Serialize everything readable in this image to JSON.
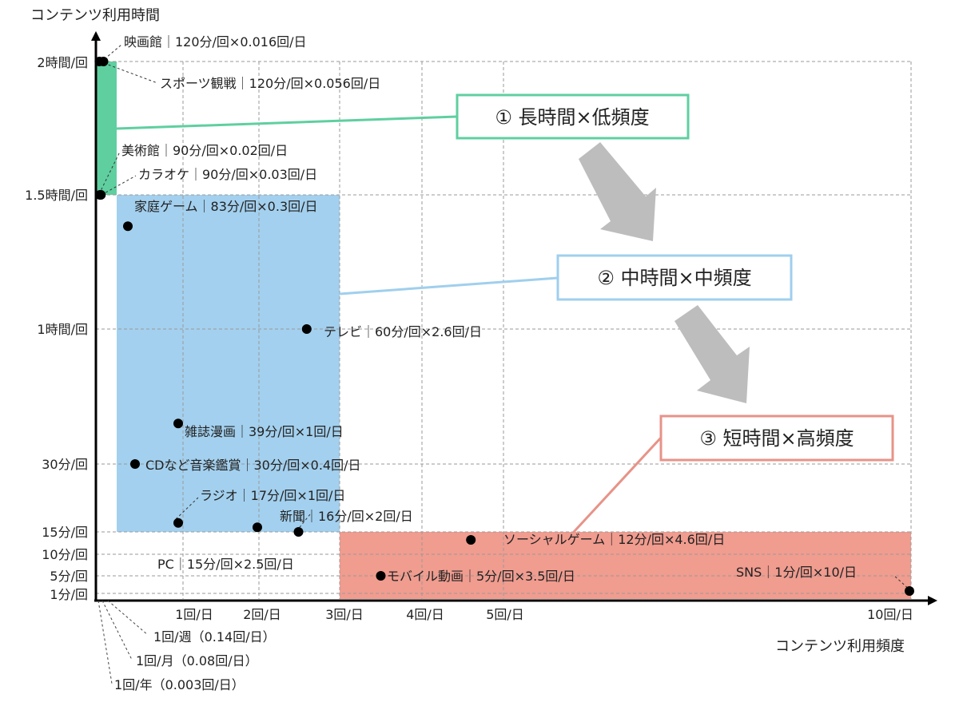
{
  "chart_data": {
    "type": "scatter",
    "ylabel": "コンテンツ利用時間",
    "xlabel": "コンテンツ利用頻度",
    "y_ticks": [
      {
        "label": "2時間/回",
        "value": 120
      },
      {
        "label": "1.5時間/回",
        "value": 90
      },
      {
        "label": "1時間/回",
        "value": 60
      },
      {
        "label": "30分/回",
        "value": 30
      },
      {
        "label": "15分/回",
        "value": 15
      },
      {
        "label": "10分/回",
        "value": 10
      },
      {
        "label": "5分/回",
        "value": 5
      },
      {
        "label": "1分/回",
        "value": 1
      }
    ],
    "x_ticks": [
      {
        "label": "1回/日",
        "value": 1
      },
      {
        "label": "2回/日",
        "value": 2
      },
      {
        "label": "3回/日",
        "value": 3
      },
      {
        "label": "4回/日",
        "value": 4
      },
      {
        "label": "5回/日",
        "value": 5
      },
      {
        "label": "10回/日",
        "value": 10
      }
    ],
    "x_small_ticks": [
      {
        "label": "1回/週（0.14回/日）",
        "value": 0.14
      },
      {
        "label": "1回/月（0.08回/日）",
        "value": 0.08
      },
      {
        "label": "1回/年（0.003回/日）",
        "value": 0.003
      }
    ],
    "points": [
      {
        "label": "映画館｜120分/回×0.016回/日",
        "x": 0.016,
        "y": 120
      },
      {
        "label": "スポーツ観戦｜120分/回×0.056回/日",
        "x": 0.056,
        "y": 120
      },
      {
        "label": "美術館｜90分/回×0.02回/日",
        "x": 0.02,
        "y": 90
      },
      {
        "label": "カラオケ｜90分/回×0.03回/日",
        "x": 0.03,
        "y": 90
      },
      {
        "label": "家庭ゲーム｜83分/回×0.3回/日",
        "x": 0.3,
        "y": 83
      },
      {
        "label": "テレビ｜60分/回×2.6回/日",
        "x": 2.6,
        "y": 60
      },
      {
        "label": "雑誌漫画｜39分/回×1回/日",
        "x": 1,
        "y": 39
      },
      {
        "label": "CDなど音楽鑑賞｜30分/回×0.4回/日",
        "x": 0.4,
        "y": 30
      },
      {
        "label": "ラジオ｜17分/回×1回/日",
        "x": 1,
        "y": 17
      },
      {
        "label": "新聞｜16分/回×2回/日",
        "x": 2,
        "y": 16
      },
      {
        "label": "PC｜15分/回×2.5回/日",
        "x": 2.5,
        "y": 15
      },
      {
        "label": "ソーシャルゲーム｜12分/回×4.6回/日",
        "x": 4.6,
        "y": 12
      },
      {
        "label": "モバイル動画｜5分/回×3.5回/日",
        "x": 3.5,
        "y": 5
      },
      {
        "label": "SNS｜1分/回×10/日",
        "x": 10,
        "y": 1
      }
    ],
    "regions": [
      {
        "label": "① 長時間×低頻度",
        "color": "#5fcfa0",
        "border": "#5fcfa0"
      },
      {
        "label": "② 中時間×中頻度",
        "color": "#a0cfed",
        "border": "#a0cfed"
      },
      {
        "label": "③ 短時間×高頻度",
        "color": "#f09c8f",
        "border": "#e79388"
      }
    ],
    "grid": true,
    "arrow_color": "#bdbdbd"
  }
}
